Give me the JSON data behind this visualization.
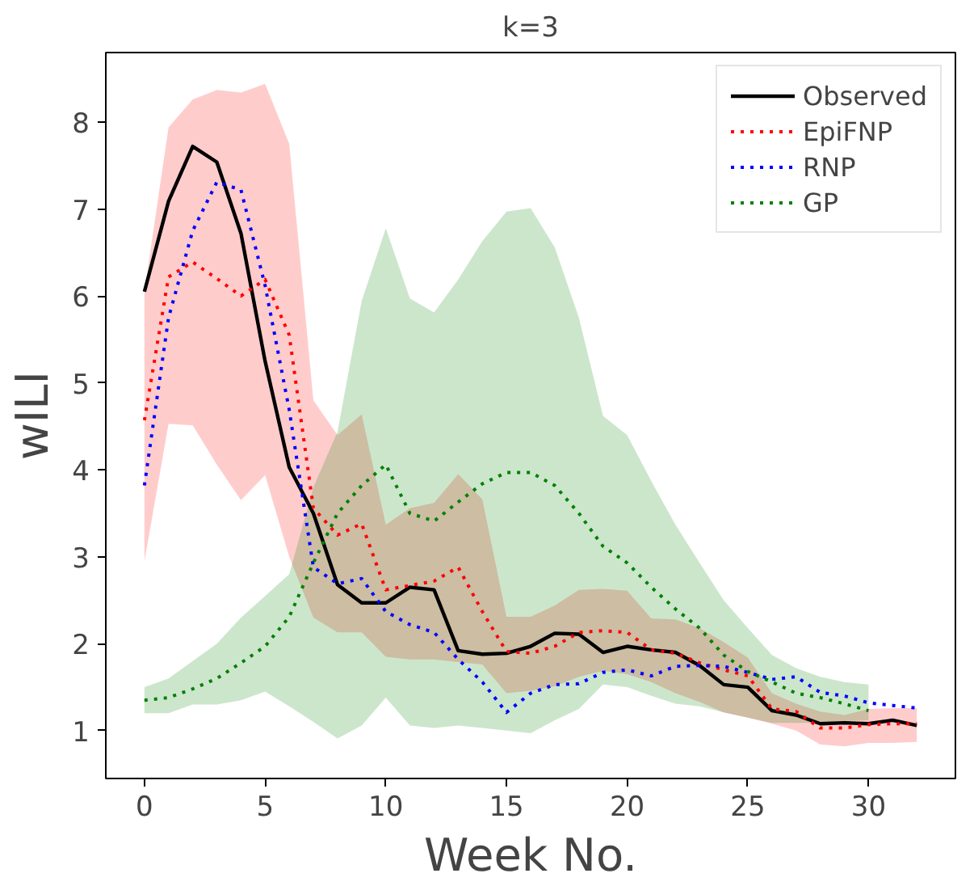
{
  "chart_data": {
    "type": "line",
    "title": "k=3",
    "xlabel": "Week No.",
    "ylabel": "wILI",
    "xlim": [
      -1.6,
      33.6
    ],
    "ylim": [
      0.45,
      8.8
    ],
    "xticks": [
      0,
      5,
      10,
      15,
      20,
      25,
      30
    ],
    "yticks": [
      1,
      2,
      3,
      4,
      5,
      6,
      7,
      8
    ],
    "grid": false,
    "legend": "top right",
    "x": [
      0,
      1,
      2,
      3,
      4,
      5,
      6,
      7,
      8,
      9,
      10,
      11,
      12,
      13,
      14,
      15,
      16,
      17,
      18,
      19,
      20,
      21,
      22,
      23,
      24,
      25,
      26,
      27,
      28,
      29,
      30,
      31,
      32
    ],
    "series": [
      {
        "name": "Observed",
        "color": "#000000",
        "line_style": "solid",
        "values": [
          6.05,
          7.09,
          7.72,
          7.54,
          6.72,
          5.25,
          4.03,
          3.5,
          2.68,
          2.47,
          2.47,
          2.65,
          2.62,
          1.92,
          1.88,
          1.89,
          1.97,
          2.12,
          2.11,
          1.9,
          1.97,
          1.93,
          1.9,
          1.75,
          1.53,
          1.5,
          1.23,
          1.18,
          1.08,
          1.09,
          1.08,
          1.12,
          1.06
        ]
      },
      {
        "name": "EpiFNP",
        "color": "#ff0000",
        "line_style": "dotted",
        "values": [
          4.57,
          6.22,
          6.39,
          6.2,
          6.0,
          6.19,
          5.55,
          3.56,
          3.25,
          3.38,
          2.62,
          2.67,
          2.72,
          2.88,
          2.37,
          1.91,
          1.89,
          1.97,
          2.13,
          2.15,
          2.13,
          1.93,
          1.89,
          1.78,
          1.7,
          1.63,
          1.25,
          1.22,
          1.03,
          1.03,
          1.07,
          1.08,
          1.08
        ],
        "lower": [
          2.95,
          4.53,
          4.51,
          4.06,
          3.65,
          3.94,
          3.0,
          2.3,
          2.13,
          2.13,
          1.85,
          1.82,
          1.82,
          1.79,
          1.76,
          1.43,
          1.46,
          1.51,
          1.62,
          1.69,
          1.65,
          1.56,
          1.43,
          1.33,
          1.21,
          1.15,
          1.08,
          1.0,
          0.84,
          0.82,
          0.86,
          0.86,
          0.87
        ],
        "upper": [
          6.05,
          7.94,
          8.26,
          8.37,
          8.34,
          8.44,
          7.75,
          4.8,
          4.4,
          4.64,
          3.37,
          3.56,
          3.62,
          3.95,
          3.66,
          2.31,
          2.31,
          2.44,
          2.62,
          2.63,
          2.61,
          2.29,
          2.28,
          2.18,
          2.02,
          1.84,
          1.43,
          1.31,
          1.22,
          1.18,
          1.25,
          1.26,
          1.26
        ]
      },
      {
        "name": "RNP",
        "color": "#0000ff",
        "line_style": "dotted",
        "values": [
          3.82,
          5.75,
          6.75,
          7.31,
          7.22,
          6.12,
          4.69,
          2.88,
          2.69,
          2.75,
          2.37,
          2.22,
          2.13,
          1.82,
          1.56,
          1.21,
          1.43,
          1.53,
          1.54,
          1.67,
          1.7,
          1.63,
          1.74,
          1.75,
          1.74,
          1.67,
          1.59,
          1.62,
          1.44,
          1.4,
          1.32,
          1.29,
          1.26
        ]
      },
      {
        "name": "GP",
        "color": "#008000",
        "line_style": "dotted",
        "x": [
          0,
          1,
          2,
          3,
          4,
          5,
          6,
          7,
          8,
          9,
          10,
          11,
          12,
          13,
          14,
          15,
          16,
          17,
          18,
          19,
          20,
          21,
          22,
          23,
          24,
          25,
          26,
          27,
          28,
          29,
          30
        ],
        "values": [
          1.35,
          1.38,
          1.48,
          1.6,
          1.78,
          1.97,
          2.31,
          2.93,
          3.5,
          3.82,
          4.06,
          3.5,
          3.41,
          3.63,
          3.84,
          3.97,
          3.97,
          3.82,
          3.5,
          3.12,
          2.93,
          2.65,
          2.4,
          2.18,
          1.87,
          1.68,
          1.56,
          1.43,
          1.38,
          1.31,
          1.23
        ],
        "lower": [
          1.2,
          1.2,
          1.3,
          1.3,
          1.35,
          1.45,
          1.28,
          1.1,
          0.91,
          1.06,
          1.38,
          1.06,
          1.03,
          1.06,
          1.03,
          1.0,
          0.97,
          1.12,
          1.25,
          1.53,
          1.5,
          1.4,
          1.31,
          1.28,
          1.21,
          1.15,
          1.09,
          1.09,
          1.09,
          1.11,
          1.12
        ],
        "upper": [
          1.5,
          1.6,
          1.8,
          2.0,
          2.3,
          2.55,
          2.8,
          3.8,
          4.44,
          5.94,
          6.78,
          5.97,
          5.81,
          6.19,
          6.63,
          6.97,
          7.01,
          6.56,
          5.75,
          4.62,
          4.4,
          3.87,
          3.37,
          2.93,
          2.5,
          2.18,
          1.87,
          1.72,
          1.62,
          1.56,
          1.53
        ]
      }
    ]
  }
}
